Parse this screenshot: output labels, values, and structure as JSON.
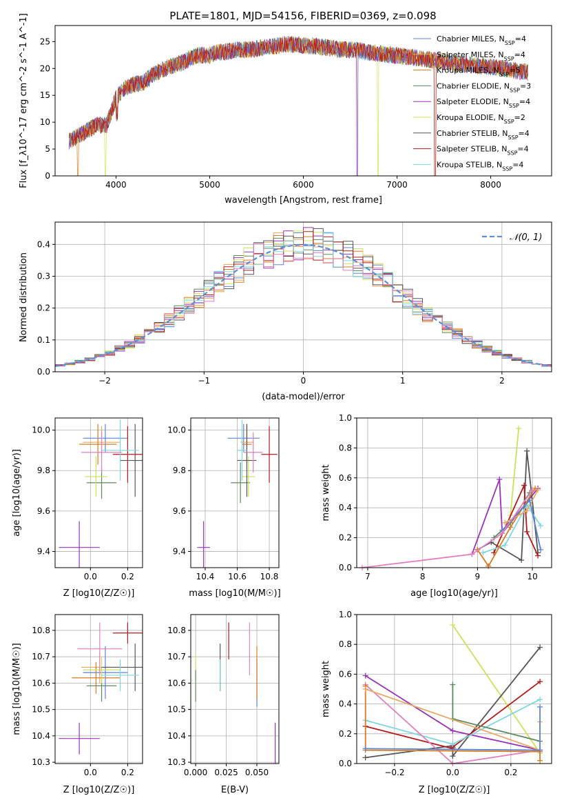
{
  "title": "PLATE=1801, MJD=54156, FIBERID=0369, z=0.098",
  "colors": {
    "Chabrier MILES": "#5b84d6",
    "Salpeter MILES": "#e8a866",
    "Kroupa MILES": "#d97b1f",
    "Chabrier ELODIE": "#5b8a5c",
    "Salpeter ELODIE": "#9932b8",
    "Kroupa ELODIE": "#cfe05a",
    "Chabrier STELIB": "#555555",
    "Salpeter STELIB": "#b31b1b",
    "Kroupa STELIB": "#7fd6e0",
    "Pink": "#e27fbf",
    "Gauss": "#5b8fd6"
  },
  "chart_data": [
    {
      "type": "line",
      "name": "spectrum",
      "xlabel": "wavelength [Angstrom, rest frame]",
      "ylabel": "Flux [f_λ10^-17 erg cm^-2 s^-1 A^-1]",
      "xlim": [
        3350,
        8650
      ],
      "ylim": [
        0,
        28
      ],
      "xticks": [
        "4000",
        "5000",
        "6000",
        "7000",
        "8000"
      ],
      "yticks": [
        "0",
        "5",
        "10",
        "15",
        "20",
        "25"
      ],
      "legend_position": "top-right",
      "legend": [
        {
          "name": "Chabrier MILES",
          "nssp": "4"
        },
        {
          "name": "Salpeter MILES",
          "nssp": "4"
        },
        {
          "name": "Kroupa MILES",
          "nssp": "5"
        },
        {
          "name": "Chabrier ELODIE",
          "nssp": "3"
        },
        {
          "name": "Salpeter ELODIE",
          "nssp": "4"
        },
        {
          "name": "Kroupa ELODIE",
          "nssp": "2"
        },
        {
          "name": "Chabrier STELIB",
          "nssp": "4"
        },
        {
          "name": "Salpeter STELIB",
          "nssp": "4"
        },
        {
          "name": "Kroupa STELIB",
          "nssp": "4"
        }
      ],
      "envelope": {
        "x": [
          3500,
          3600,
          3700,
          3800,
          3900,
          4000,
          4100,
          4200,
          4300,
          4400,
          4500,
          4600,
          4700,
          4800,
          4900,
          5000,
          5100,
          5200,
          5300,
          5400,
          5500,
          5600,
          5700,
          5800,
          5900,
          6000,
          6100,
          6200,
          6300,
          6400,
          6500,
          6600,
          6700,
          6800,
          6900,
          7000,
          7100,
          7200,
          7300,
          7400,
          7500,
          7600,
          7700,
          7800,
          7900,
          8000,
          8100,
          8200,
          8300,
          8400
        ],
        "y": [
          6.5,
          7.5,
          8.5,
          9.5,
          9.5,
          14.5,
          16.5,
          17,
          17.5,
          19,
          19.8,
          20.5,
          21,
          22,
          22.5,
          22.5,
          23,
          23.2,
          23.5,
          23.5,
          23.7,
          24,
          24.2,
          24.5,
          24.5,
          24.3,
          24.2,
          24,
          23.8,
          23.5,
          23.5,
          23.3,
          23,
          22.8,
          22.6,
          22.4,
          22.2,
          22,
          21.8,
          21.5,
          21.3,
          21,
          20.8,
          20.6,
          20.5,
          20.3,
          20.1,
          19.8,
          19.5,
          19.3
        ]
      }
    },
    {
      "type": "line",
      "name": "residual-histogram",
      "xlabel": "(data-model)/error",
      "ylabel": "Normed distribution",
      "xlim": [
        -2.5,
        2.5
      ],
      "ylim": [
        0,
        0.47
      ],
      "xticks": [
        "−2",
        "−1",
        "0",
        "1",
        "2"
      ],
      "yticks": [
        "0.0",
        "0.1",
        "0.2",
        "0.3",
        "0.4"
      ],
      "legend_position": "top-right",
      "legend": [
        {
          "name": "𝒩(0, 1)"
        }
      ],
      "bins": [
        -2.4,
        -2.2,
        -2.0,
        -1.8,
        -1.6,
        -1.4,
        -1.2,
        -1.0,
        -0.8,
        -0.6,
        -0.4,
        -0.2,
        0.0,
        0.2,
        0.4,
        0.6,
        0.8,
        1.0,
        1.2,
        1.4,
        1.6,
        1.8,
        2.0,
        2.2,
        2.4
      ],
      "model_density": [
        0.022,
        0.035,
        0.054,
        0.079,
        0.111,
        0.15,
        0.194,
        0.242,
        0.29,
        0.333,
        0.368,
        0.391,
        0.399,
        0.391,
        0.368,
        0.333,
        0.29,
        0.242,
        0.194,
        0.15,
        0.111,
        0.079,
        0.054,
        0.035,
        0.022
      ]
    },
    {
      "type": "scatter",
      "name": "age-vs-Z",
      "xlabel": "Z [log10(Z/Z☉)]",
      "ylabel": "age  [log10(age/yr)]",
      "xlim": [
        -0.19,
        0.28
      ],
      "ylim": [
        9.32,
        10.06
      ],
      "xticks": [
        "0.0",
        "0.2"
      ],
      "yticks": [
        "9.4",
        "9.6",
        "9.8",
        "10.0"
      ],
      "points": [
        {
          "series": "Chabrier MILES",
          "x": 0.08,
          "xerr": 0.12,
          "y": 9.96,
          "yerr": 0.07
        },
        {
          "series": "Salpeter MILES",
          "x": 0.06,
          "xerr": 0.1,
          "y": 9.94,
          "yerr": 0.08
        },
        {
          "series": "Kroupa MILES",
          "x": 0.04,
          "xerr": 0.1,
          "y": 9.93,
          "yerr": 0.1
        },
        {
          "series": "Chabrier ELODIE",
          "x": 0.06,
          "xerr": 0.08,
          "y": 9.74,
          "yerr": 0.08
        },
        {
          "series": "Salpeter ELODIE",
          "x": -0.06,
          "xerr": 0.11,
          "y": 9.42,
          "yerr": 0.13
        },
        {
          "series": "Kroupa ELODIE",
          "x": 0.03,
          "xerr": 0.06,
          "y": 9.77,
          "yerr": 0.1
        },
        {
          "series": "Chabrier STELIB",
          "x": 0.24,
          "xerr": 0.08,
          "y": 9.85,
          "yerr": 0.18
        },
        {
          "series": "Salpeter STELIB",
          "x": 0.2,
          "xerr": 0.08,
          "y": 9.88,
          "yerr": 0.14
        },
        {
          "series": "Kroupa STELIB",
          "x": 0.16,
          "xerr": 0.1,
          "y": 9.9,
          "yerr": 0.15
        },
        {
          "series": "Pink",
          "x": 0.06,
          "xerr": 0.11,
          "y": 9.89,
          "yerr": 0.1
        }
      ]
    },
    {
      "type": "scatter",
      "name": "age-vs-mass",
      "xlabel": "mass [log10(M/M☉)]",
      "xlim": [
        10.31,
        10.86
      ],
      "ylim": [
        9.32,
        10.06
      ],
      "xticks": [
        "10.4",
        "10.6",
        "10.8"
      ],
      "yticks": [
        "9.4",
        "9.6",
        "9.8",
        "10.0"
      ],
      "points": [
        {
          "series": "Chabrier MILES",
          "x": 10.64,
          "xerr": 0.1,
          "y": 9.96,
          "yerr": 0.07
        },
        {
          "series": "Salpeter MILES",
          "x": 10.66,
          "xerr": 0.04,
          "y": 9.94,
          "yerr": 0.08
        },
        {
          "series": "Kroupa MILES",
          "x": 10.66,
          "xerr": 0.03,
          "y": 9.93,
          "yerr": 0.1
        },
        {
          "series": "Chabrier ELODIE",
          "x": 10.62,
          "xerr": 0.06,
          "y": 9.74,
          "yerr": 0.1
        },
        {
          "series": "Salpeter ELODIE",
          "x": 10.39,
          "xerr": 0.04,
          "y": 9.42,
          "yerr": 0.13
        },
        {
          "series": "Kroupa ELODIE",
          "x": 10.67,
          "xerr": 0.04,
          "y": 9.77,
          "yerr": 0.1
        },
        {
          "series": "Chabrier STELIB",
          "x": 10.66,
          "xerr": 0.06,
          "y": 9.85,
          "yerr": 0.18
        },
        {
          "series": "Salpeter STELIB",
          "x": 10.8,
          "xerr": 0.05,
          "y": 9.88,
          "yerr": 0.14
        },
        {
          "series": "Kroupa STELIB",
          "x": 10.63,
          "xerr": 0.03,
          "y": 9.9,
          "yerr": 0.15
        },
        {
          "series": "Pink",
          "x": 10.7,
          "xerr": 0.06,
          "y": 9.89,
          "yerr": 0.1
        }
      ]
    },
    {
      "type": "line",
      "name": "mass-weight-vs-age",
      "xlabel": "age  [log10(age/yr)]",
      "ylabel": "mass weight",
      "xlim": [
        6.8,
        10.35
      ],
      "ylim": [
        0,
        1.0
      ],
      "xticks": [
        "7",
        "8",
        "9",
        "10"
      ],
      "yticks": [
        "0.0",
        "0.2",
        "0.4",
        "0.6",
        "0.8",
        "1.0"
      ],
      "series": [
        {
          "name": "Salpeter ELODIE",
          "x": [
            8.9,
            9.4,
            9.45,
            10.1
          ],
          "y": [
            0.09,
            0.59,
            0.23,
            0.53
          ]
        },
        {
          "name": "Kroupa ELODIE",
          "x": [
            9.6,
            9.75
          ],
          "y": [
            0.35,
            0.93
          ]
        },
        {
          "name": "Chabrier STELIB",
          "x": [
            9.0,
            9.25,
            9.8,
            9.9,
            10.1
          ],
          "y": [
            0.12,
            0.17,
            0.05,
            0.78,
            0.1
          ]
        },
        {
          "name": "Salpeter STELIB",
          "x": [
            9.3,
            9.85,
            9.9,
            10.1
          ],
          "y": [
            0.1,
            0.55,
            0.24,
            0.08
          ]
        },
        {
          "name": "Kroupa STELIB",
          "x": [
            9.1,
            9.5,
            9.9,
            10.15
          ],
          "y": [
            0.1,
            0.15,
            0.42,
            0.28
          ]
        },
        {
          "name": "Kroupa MILES",
          "x": [
            9.0,
            9.2,
            9.6,
            10.05
          ],
          "y": [
            0.12,
            0.01,
            0.27,
            0.53
          ]
        },
        {
          "name": "Salpeter MILES",
          "x": [
            9.5,
            9.9,
            10.1
          ],
          "y": [
            0.3,
            0.38,
            0.52
          ]
        },
        {
          "name": "Chabrier ELODIE",
          "x": [
            9.3,
            9.6,
            9.95
          ],
          "y": [
            0.2,
            0.3,
            0.5
          ]
        },
        {
          "name": "Chabrier MILES",
          "x": [
            9.45,
            9.95,
            10.15
          ],
          "y": [
            0.25,
            0.45,
            0.12
          ]
        },
        {
          "name": "Pink",
          "x": [
            6.9,
            8.9,
            9.45,
            10.0
          ],
          "y": [
            0.0,
            0.09,
            0.23,
            0.52
          ]
        }
      ]
    },
    {
      "type": "scatter",
      "name": "mass-vs-Z",
      "xlabel": "Z [log10(Z/Z☉)]",
      "ylabel": "mass [log10(M/M☉)]",
      "xlim": [
        -0.19,
        0.28
      ],
      "ylim": [
        10.295,
        10.86
      ],
      "xticks": [
        "0.0",
        "0.2"
      ],
      "yticks": [
        "10.3",
        "10.4",
        "10.5",
        "10.6",
        "10.7",
        "10.8"
      ],
      "points": [
        {
          "series": "Chabrier MILES",
          "x": 0.08,
          "xerr": 0.12,
          "y": 10.64,
          "yerr": 0.1
        },
        {
          "series": "Salpeter MILES",
          "x": 0.05,
          "xerr": 0.1,
          "y": 10.66,
          "yerr": 0.06
        },
        {
          "series": "Kroupa MILES",
          "x": 0.03,
          "xerr": 0.13,
          "y": 10.62,
          "yerr": 0.06
        },
        {
          "series": "Chabrier ELODIE",
          "x": 0.06,
          "xerr": 0.08,
          "y": 10.59,
          "yerr": 0.06
        },
        {
          "series": "Salpeter ELODIE",
          "x": -0.06,
          "xerr": 0.11,
          "y": 10.39,
          "yerr": 0.06
        },
        {
          "series": "Kroupa ELODIE",
          "x": 0.06,
          "xerr": 0.1,
          "y": 10.65,
          "yerr": 0.05
        },
        {
          "series": "Chabrier STELIB",
          "x": 0.24,
          "xerr": 0.18,
          "y": 10.66,
          "yerr": 0.09
        },
        {
          "series": "Salpeter STELIB",
          "x": 0.2,
          "xerr": 0.08,
          "y": 10.79,
          "yerr": 0.04
        },
        {
          "series": "Kroupa STELIB",
          "x": 0.16,
          "xerr": 0.1,
          "y": 10.63,
          "yerr": 0.06
        },
        {
          "series": "Pink",
          "x": 0.05,
          "xerr": 0.12,
          "y": 10.73,
          "yerr": 0.1
        }
      ]
    },
    {
      "type": "scatter",
      "name": "mass-vs-EBV",
      "xlabel": "E(B-V)",
      "xlim": [
        -0.004,
        0.068
      ],
      "ylim": [
        10.295,
        10.86
      ],
      "xticks": [
        "0.000",
        "0.025",
        "0.050"
      ],
      "yticks": [
        "10.3",
        "10.4",
        "10.5",
        "10.6",
        "10.7",
        "10.8"
      ],
      "points": [
        {
          "series": "Kroupa ELODIE",
          "x": 0.0,
          "y": 10.66,
          "yerr": 0.05
        },
        {
          "series": "Chabrier ELODIE",
          "x": 0.0,
          "y": 10.59,
          "yerr": 0.06
        },
        {
          "series": "Chabrier STELIB",
          "x": 0.02,
          "y": 10.66,
          "yerr": 0.09
        },
        {
          "series": "Kroupa STELIB",
          "x": 0.02,
          "y": 10.63,
          "yerr": 0.06
        },
        {
          "series": "Salpeter STELIB",
          "x": 0.027,
          "y": 10.76,
          "yerr": 0.07
        },
        {
          "series": "Pink",
          "x": 0.044,
          "y": 10.73,
          "yerr": 0.1
        },
        {
          "series": "Chabrier MILES",
          "x": 0.05,
          "y": 10.6,
          "yerr": 0.09
        },
        {
          "series": "Kroupa MILES",
          "x": 0.05,
          "y": 10.64,
          "yerr": 0.1
        },
        {
          "series": "Salpeter ELODIE",
          "x": 0.065,
          "y": 10.36,
          "yerr": 0.09
        }
      ]
    },
    {
      "type": "line",
      "name": "mass-weight-vs-Z",
      "xlabel": "Z [log10(Z/Z☉)]",
      "ylabel": "mass weight",
      "xlim": [
        -0.33,
        0.34
      ],
      "ylim": [
        0,
        1.0
      ],
      "xticks": [
        "−0.2",
        "0.0",
        "0.2"
      ],
      "yticks": [
        "0.0",
        "0.2",
        "0.4",
        "0.6",
        "0.8",
        "1.0"
      ],
      "series": [
        {
          "name": "Salpeter ELODIE",
          "x": [
            -0.3,
            0.0,
            0.3
          ],
          "y": [
            0.59,
            0.22,
            0.09
          ]
        },
        {
          "name": "Kroupa ELODIE",
          "x": [
            0.0,
            0.3
          ],
          "y": [
            0.93,
            0.07
          ]
        },
        {
          "name": "Chabrier STELIB",
          "x": [
            -0.3,
            0.0,
            0.0,
            0.3
          ],
          "y": [
            0.04,
            0.12,
            0.05,
            0.78
          ]
        },
        {
          "name": "Salpeter STELIB",
          "x": [
            -0.3,
            0.0,
            0.0,
            0.3
          ],
          "y": [
            0.25,
            0.1,
            0.11,
            0.55
          ]
        },
        {
          "name": "Kroupa STELIB",
          "x": [
            -0.3,
            0.0,
            0.3
          ],
          "y": [
            0.29,
            0.13,
            0.43
          ]
        },
        {
          "name": "Chabrier ELODIE",
          "x": [
            0.0,
            0.0,
            0.3
          ],
          "y": [
            0.53,
            0.3,
            0.15
          ]
        },
        {
          "name": "Pink",
          "x": [
            -0.3,
            0.0,
            0.3
          ],
          "y": [
            0.53,
            0.0,
            0.09
          ]
        },
        {
          "name": "Kroupa MILES",
          "x": [
            -0.3,
            -0.3,
            0.3,
            0.3
          ],
          "y": [
            0.52,
            0.09,
            0.08,
            0.02
          ]
        },
        {
          "name": "Salpeter MILES",
          "x": [
            -0.3,
            0.3,
            0.3
          ],
          "y": [
            0.5,
            0.09,
            0.28
          ]
        },
        {
          "name": "Chabrier MILES",
          "x": [
            -0.3,
            0.3,
            0.3
          ],
          "y": [
            0.1,
            0.09,
            0.38
          ]
        }
      ]
    }
  ]
}
